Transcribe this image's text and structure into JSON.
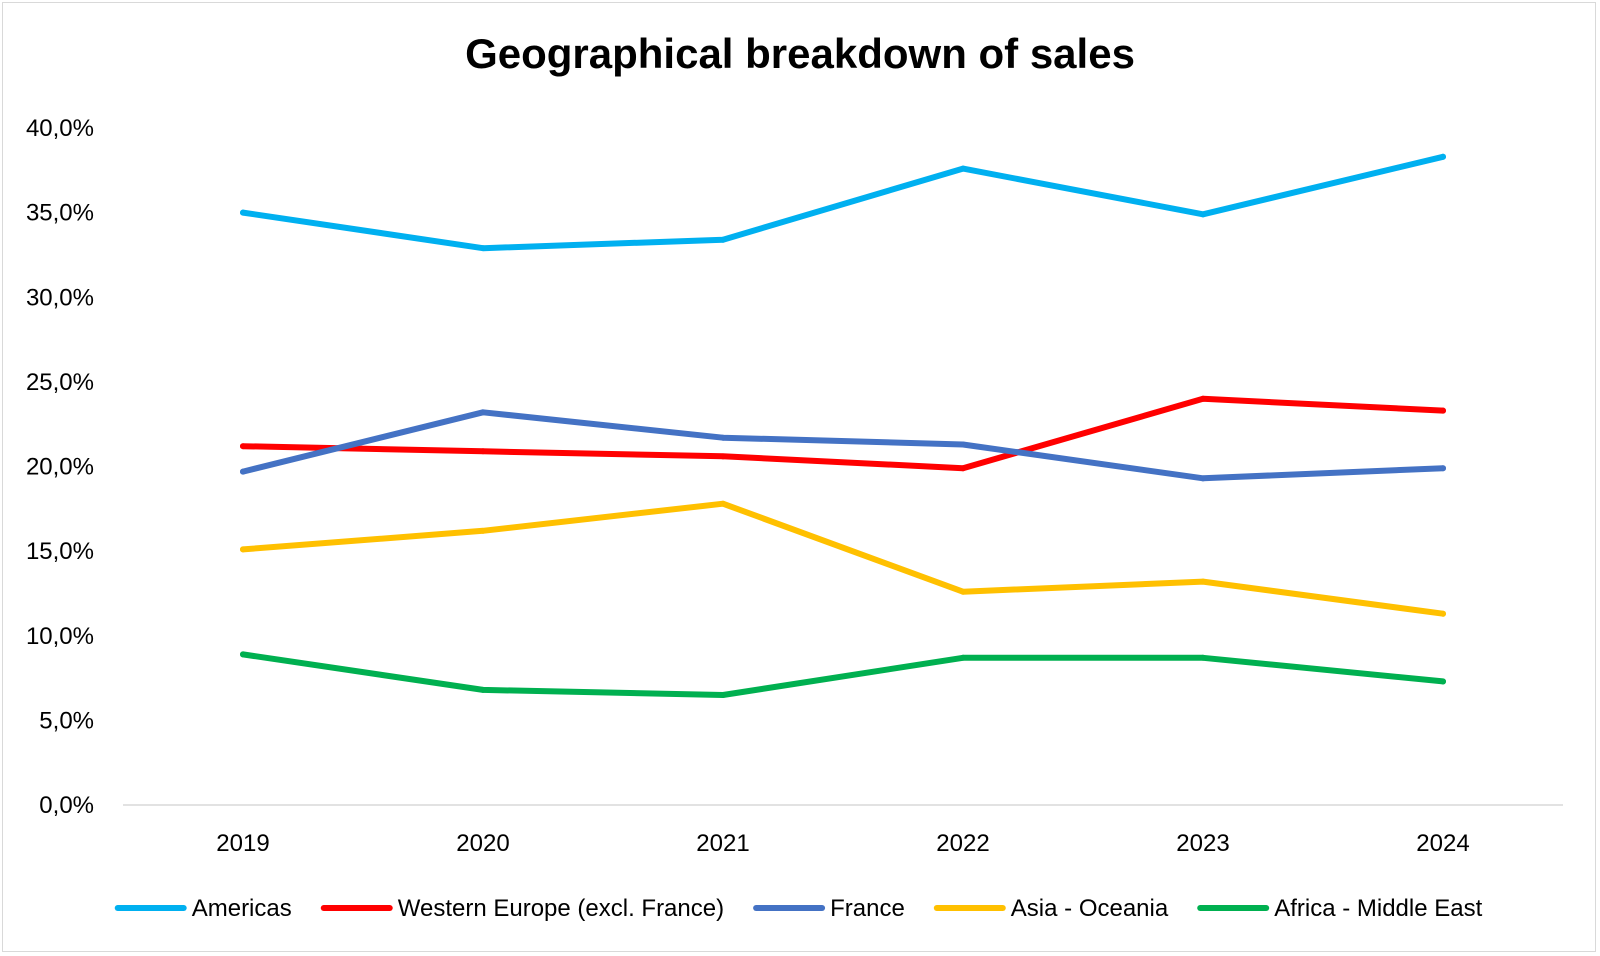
{
  "chart_data": {
    "type": "line",
    "title": "Geographical breakdown of sales",
    "xlabel": "",
    "ylabel": "",
    "categories": [
      "2019",
      "2020",
      "2021",
      "2022",
      "2023",
      "2024"
    ],
    "ylim": [
      0,
      40
    ],
    "yticks": [
      {
        "value": 40,
        "label": "40,0%"
      },
      {
        "value": 35,
        "label": "35,0%"
      },
      {
        "value": 30,
        "label": "30,0%"
      },
      {
        "value": 25,
        "label": "25,0%"
      },
      {
        "value": 20,
        "label": "20,0%"
      },
      {
        "value": 15,
        "label": "15,0%"
      },
      {
        "value": 10,
        "label": "10,0%"
      },
      {
        "value": 5,
        "label": "5,0%"
      },
      {
        "value": 0,
        "label": "0,0%"
      }
    ],
    "grid": false,
    "legend_position": "bottom",
    "series": [
      {
        "name": "Americas",
        "color": "#00B0F0",
        "values": [
          35.0,
          32.9,
          33.4,
          37.6,
          34.9,
          38.3
        ]
      },
      {
        "name": "Western Europe (excl. France)",
        "color": "#FF0000",
        "values": [
          21.2,
          20.9,
          20.6,
          19.9,
          24.0,
          23.3
        ]
      },
      {
        "name": "France",
        "color": "#4472C4",
        "values": [
          19.7,
          23.2,
          21.7,
          21.3,
          19.3,
          19.9
        ]
      },
      {
        "name": "Asia - Oceania",
        "color": "#FFC000",
        "values": [
          15.1,
          16.2,
          17.8,
          12.6,
          13.2,
          11.3
        ]
      },
      {
        "name": "Africa - Middle East",
        "color": "#00B050",
        "values": [
          8.9,
          6.8,
          6.5,
          8.7,
          8.7,
          7.3
        ]
      }
    ]
  }
}
